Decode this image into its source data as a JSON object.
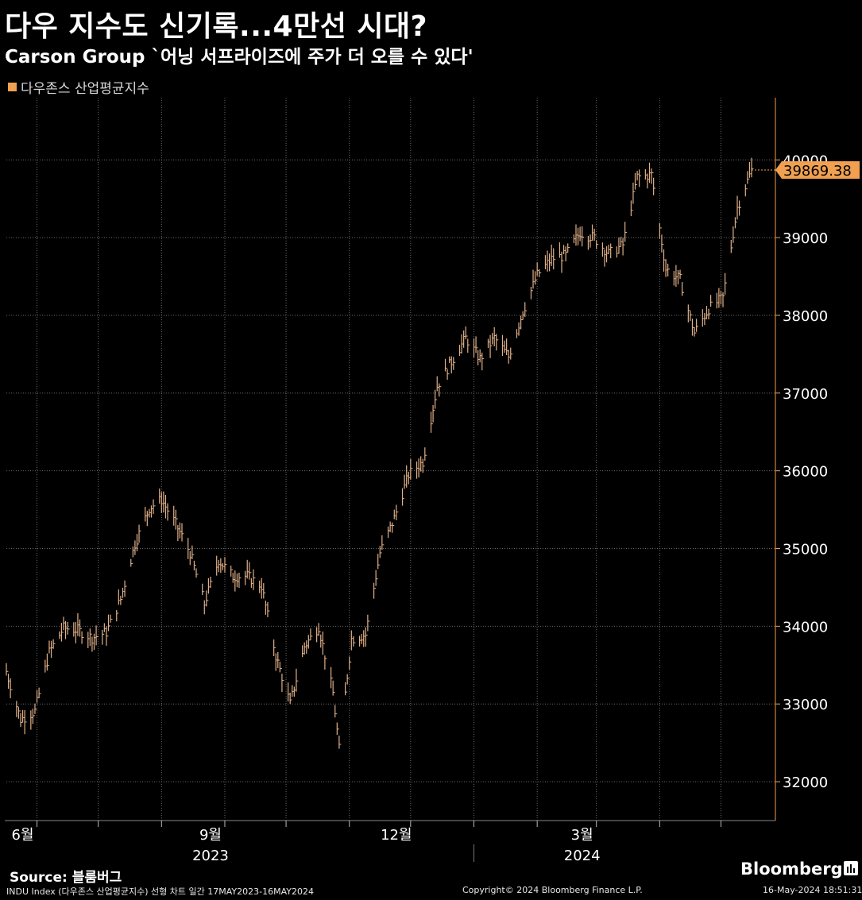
{
  "header": {
    "title": "다우 지수도 신기록...4만선 시대?",
    "subtitle": "Carson Group `어닝 서프라이즈에 주가 더 오를 수 있다'",
    "legend_label": "다우존스 산업평균지수"
  },
  "footer": {
    "source": "Source: 블룸버그",
    "chart_info": "INDU Index (다우존스 산업평균지수) 선형 차트  일간 17MAY2023-16MAY2024",
    "copyright": "Copyright© 2024 Bloomberg Finance L.P.",
    "timestamp": "16-May-2024 18:51:31",
    "brand": "Bloomberg"
  },
  "colors": {
    "background": "#000000",
    "series": "#f0a050",
    "bar": "#e0b089",
    "grid": "#6a6a6a",
    "axis_label": "#ffffff"
  },
  "chart_data": {
    "type": "line",
    "title": "다우존스 산업평균지수",
    "ylim": [
      31500,
      40800
    ],
    "y_ticks": [
      32000,
      33000,
      34000,
      35000,
      36000,
      37000,
      38000,
      39000,
      40000
    ],
    "y_tick_labels": [
      "32000",
      "33000",
      "34000",
      "35000",
      "36000",
      "37000",
      "38000",
      "39000",
      "40000"
    ],
    "x_range": [
      "2023-05-17",
      "2024-05-16"
    ],
    "month_labels": [
      {
        "date": "2023-06-01",
        "label": "6월"
      },
      {
        "date": "2023-09-01",
        "label": "9월"
      },
      {
        "date": "2023-12-01",
        "label": "12월"
      },
      {
        "date": "2024-03-01",
        "label": "3월"
      }
    ],
    "year_labels": [
      {
        "date": "2023-09-01",
        "label": "2023"
      },
      {
        "date": "2024-03-01",
        "label": "2024"
      }
    ],
    "last_value": 39869.38,
    "last_value_label": "39869.38",
    "grid": true,
    "legend": "top-left",
    "series": [
      {
        "name": "다우존스 산업평균지수",
        "points": [
          [
            "2023-05-17",
            33420
          ],
          [
            "2023-05-24",
            32800
          ],
          [
            "2023-05-31",
            32908
          ],
          [
            "2023-06-07",
            33665
          ],
          [
            "2023-06-14",
            33979
          ],
          [
            "2023-06-21",
            33951
          ],
          [
            "2023-06-28",
            33852
          ],
          [
            "2023-07-05",
            33922
          ],
          [
            "2023-07-12",
            34347
          ],
          [
            "2023-07-19",
            35061
          ],
          [
            "2023-07-26",
            35520
          ],
          [
            "2023-08-01",
            35630
          ],
          [
            "2023-08-08",
            35314
          ],
          [
            "2023-08-15",
            34946
          ],
          [
            "2023-08-22",
            34288
          ],
          [
            "2023-08-29",
            34852
          ],
          [
            "2023-09-05",
            34641
          ],
          [
            "2023-09-12",
            34646
          ],
          [
            "2023-09-19",
            34518
          ],
          [
            "2023-09-26",
            33618
          ],
          [
            "2023-10-03",
            33002
          ],
          [
            "2023-10-10",
            33739
          ],
          [
            "2023-10-17",
            33997
          ],
          [
            "2023-10-24",
            33141
          ],
          [
            "2023-10-27",
            32418
          ],
          [
            "2023-11-02",
            33839
          ],
          [
            "2023-11-09",
            33891
          ],
          [
            "2023-11-16",
            34945
          ],
          [
            "2023-11-23",
            35390
          ],
          [
            "2023-11-30",
            35950
          ],
          [
            "2023-12-07",
            36117
          ],
          [
            "2023-12-14",
            37090
          ],
          [
            "2023-12-21",
            37404
          ],
          [
            "2023-12-28",
            37710
          ],
          [
            "2024-01-04",
            37440
          ],
          [
            "2024-01-11",
            37711
          ],
          [
            "2024-01-18",
            37468
          ],
          [
            "2024-01-25",
            38049
          ],
          [
            "2024-02-01",
            38519
          ],
          [
            "2024-02-08",
            38726
          ],
          [
            "2024-02-15",
            38773
          ],
          [
            "2024-02-22",
            39069
          ],
          [
            "2024-02-29",
            38996
          ],
          [
            "2024-03-07",
            38791
          ],
          [
            "2024-03-14",
            38906
          ],
          [
            "2024-03-21",
            39781
          ],
          [
            "2024-03-28",
            39807
          ],
          [
            "2024-04-04",
            38597
          ],
          [
            "2024-04-11",
            38459
          ],
          [
            "2024-04-18",
            37775
          ],
          [
            "2024-04-25",
            38086
          ],
          [
            "2024-05-02",
            38226
          ],
          [
            "2024-05-09",
            39387
          ],
          [
            "2024-05-16",
            39869.38
          ]
        ]
      }
    ]
  }
}
